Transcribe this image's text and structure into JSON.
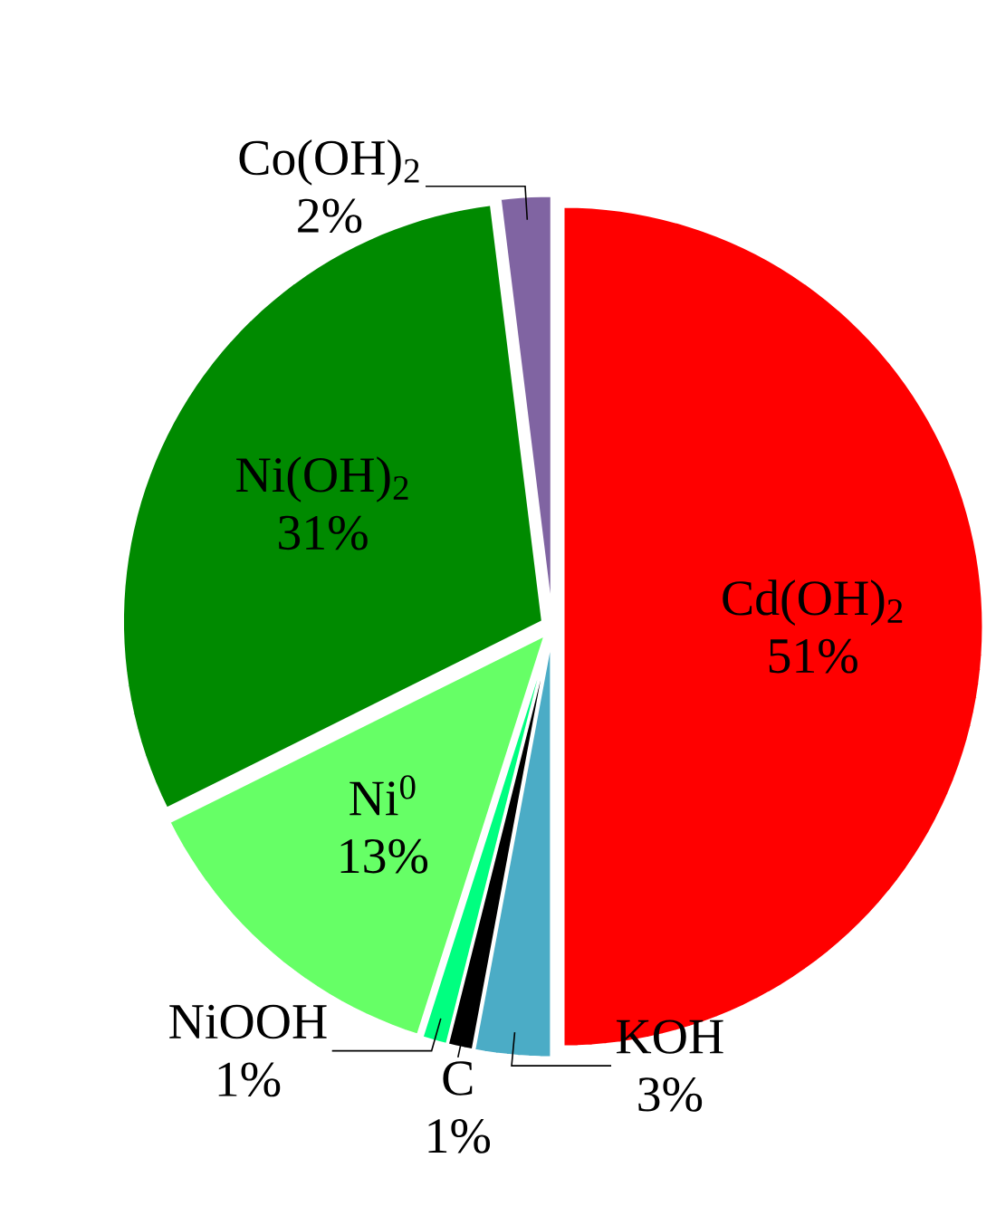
{
  "chart_data": {
    "type": "pie",
    "categories": [
      "Cd(OH)$_{2}$",
      "KOH",
      "C",
      "NiOOH",
      "Ni$^{0}$",
      "Ni(OH)$_{2}$",
      "Co(OH)$_{2}$"
    ],
    "values": [
      51,
      3,
      1,
      1,
      13,
      31,
      2
    ],
    "value_labels": [
      "51%",
      "3%",
      "1%",
      "1%",
      "13%",
      "31%",
      "2%"
    ],
    "colors": [
      "#ff0000",
      "#4bacc6",
      "#000000",
      "#00ff80",
      "#66ff66",
      "#008a00",
      "#8064a2"
    ]
  }
}
